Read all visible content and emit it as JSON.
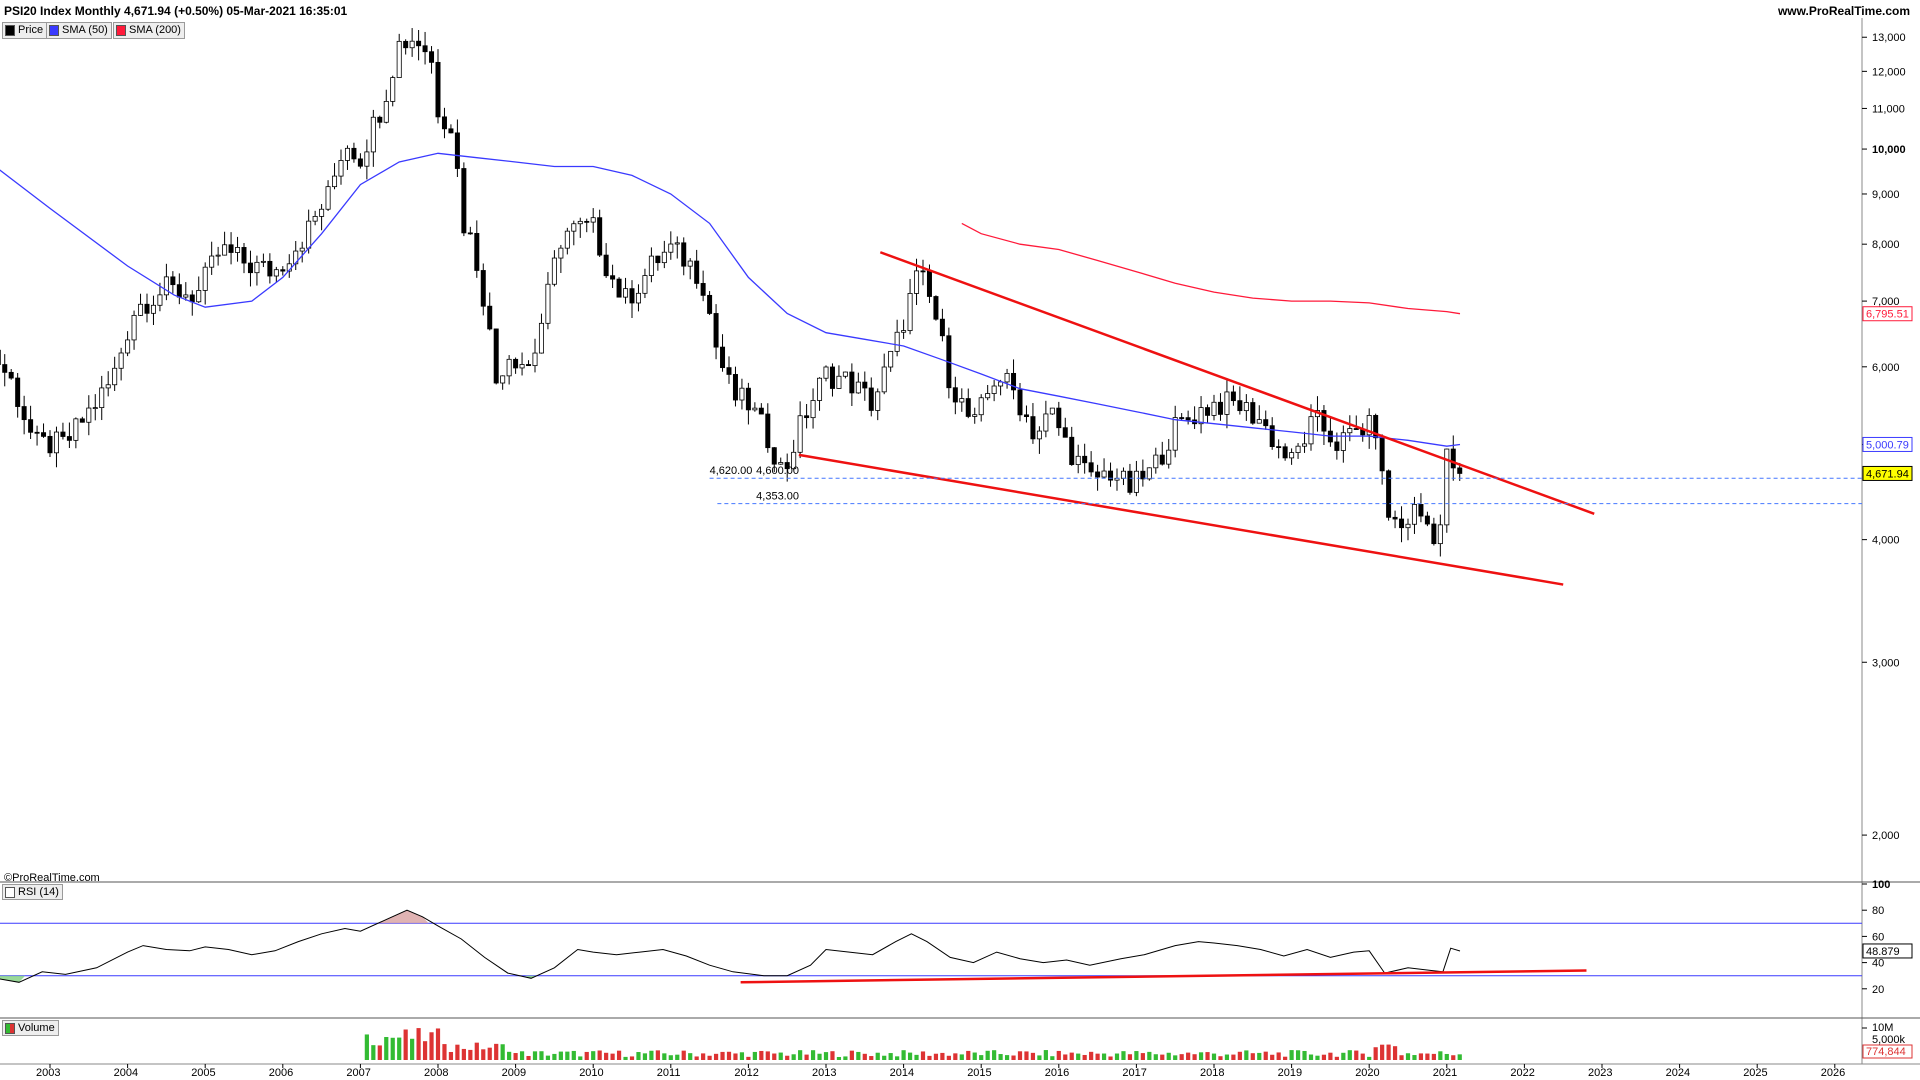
{
  "header": {
    "title": "PSI20 Index Monthly 4,671.94 (+0.50%) 05-Mar-2021 16:35:01",
    "site": "www.ProRealTime.com"
  },
  "legend": [
    {
      "label": "Price",
      "color": "#000000"
    },
    {
      "label": "SMA (50)",
      "color": "#3a3aff"
    },
    {
      "label": "SMA (200)",
      "color": "#ff1a3a"
    }
  ],
  "credit": "©ProRealTime.com",
  "colors": {
    "up": "#ffffff",
    "down": "#000000",
    "sma50": "#3a3aff",
    "sma200": "#ff1a3a",
    "trend": "#ee1111",
    "guide": "#4477ff",
    "volUp": "#33bb33",
    "volDown": "#dd3333",
    "rsiOver": "#d8a0a0",
    "rsiUnder": "#7fcf7f"
  },
  "chart_data": [
    {
      "type": "candlestick",
      "title": "PSI20 Index Monthly",
      "x_ticks": [
        "2003",
        "2004",
        "2005",
        "2006",
        "2007",
        "2008",
        "2009",
        "2010",
        "2011",
        "2012",
        "2013",
        "2014",
        "2015",
        "2016",
        "2017",
        "2018",
        "2019",
        "2020",
        "2021",
        "2022",
        "2023",
        "2024",
        "2025",
        "2026"
      ],
      "y_ticks": [
        "13,000",
        "12,000",
        "11,000",
        "10,000",
        "9,000",
        "8,000",
        "7,000",
        "6,000",
        "5,000",
        "4,000",
        "3,000",
        "2,000"
      ],
      "y_scale": "log",
      "ylim": [
        1800,
        13600
      ],
      "price_anchors": [
        [
          2002.0,
          7300
        ],
        [
          2002.2,
          6300
        ],
        [
          2002.5,
          5800
        ],
        [
          2002.8,
          5000
        ],
        [
          2003.2,
          5000
        ],
        [
          2003.5,
          5400
        ],
        [
          2003.8,
          5800
        ],
        [
          2004.1,
          6900
        ],
        [
          2004.5,
          7200
        ],
        [
          2004.9,
          7100
        ],
        [
          2005.2,
          7900
        ],
        [
          2005.6,
          7600
        ],
        [
          2005.9,
          7500
        ],
        [
          2006.3,
          8200
        ],
        [
          2006.6,
          9000
        ],
        [
          2006.8,
          10200
        ],
        [
          2007.0,
          9800
        ],
        [
          2007.3,
          11200
        ],
        [
          2007.5,
          12800
        ],
        [
          2007.7,
          13000
        ],
        [
          2007.9,
          12500
        ],
        [
          2008.0,
          11000
        ],
        [
          2008.2,
          10500
        ],
        [
          2008.3,
          8500
        ],
        [
          2008.45,
          8000
        ],
        [
          2008.6,
          7000
        ],
        [
          2008.75,
          5800
        ],
        [
          2008.9,
          6200
        ],
        [
          2009.2,
          6000
        ],
        [
          2009.4,
          7000
        ],
        [
          2009.6,
          8200
        ],
        [
          2009.8,
          8300
        ],
        [
          2010.0,
          8300
        ],
        [
          2010.2,
          7500
        ],
        [
          2010.4,
          7000
        ],
        [
          2010.6,
          7300
        ],
        [
          2010.8,
          7700
        ],
        [
          2011.0,
          7900
        ],
        [
          2011.2,
          7700
        ],
        [
          2011.4,
          7400
        ],
        [
          2011.6,
          6200
        ],
        [
          2011.8,
          5600
        ],
        [
          2012.0,
          5500
        ],
        [
          2012.3,
          5000
        ],
        [
          2012.45,
          4650
        ],
        [
          2012.7,
          5300
        ],
        [
          2013.0,
          5900
        ],
        [
          2013.3,
          5800
        ],
        [
          2013.6,
          5500
        ],
        [
          2013.9,
          6300
        ],
        [
          2014.2,
          7500
        ],
        [
          2014.4,
          6800
        ],
        [
          2014.6,
          5800
        ],
        [
          2014.9,
          5200
        ],
        [
          2015.2,
          5900
        ],
        [
          2015.4,
          5700
        ],
        [
          2015.7,
          5100
        ],
        [
          2015.9,
          5400
        ],
        [
          2016.1,
          5000
        ],
        [
          2016.4,
          4600
        ],
        [
          2016.7,
          4700
        ],
        [
          2016.9,
          4500
        ],
        [
          2017.2,
          4700
        ],
        [
          2017.5,
          5200
        ],
        [
          2017.8,
          5400
        ],
        [
          2018.0,
          5500
        ],
        [
          2018.3,
          5500
        ],
        [
          2018.6,
          5300
        ],
        [
          2018.8,
          5000
        ],
        [
          2019.0,
          4800
        ],
        [
          2019.3,
          5300
        ],
        [
          2019.6,
          5000
        ],
        [
          2019.9,
          5200
        ],
        [
          2020.1,
          5200
        ],
        [
          2020.2,
          4300
        ],
        [
          2020.4,
          4100
        ],
        [
          2020.6,
          4300
        ],
        [
          2020.9,
          4000
        ],
        [
          2021.0,
          4850
        ],
        [
          2021.17,
          4672
        ]
      ],
      "sma50": [
        [
          2002.0,
          10000
        ],
        [
          2003.0,
          8700
        ],
        [
          2004.0,
          7600
        ],
        [
          2004.6,
          7100
        ],
        [
          2005.0,
          6900
        ],
        [
          2005.6,
          7000
        ],
        [
          2006.0,
          7400
        ],
        [
          2006.5,
          8200
        ],
        [
          2007.0,
          9200
        ],
        [
          2007.5,
          9700
        ],
        [
          2008.0,
          9900
        ],
        [
          2008.5,
          9800
        ],
        [
          2009.0,
          9700
        ],
        [
          2009.5,
          9600
        ],
        [
          2010.0,
          9600
        ],
        [
          2010.5,
          9400
        ],
        [
          2011.0,
          9000
        ],
        [
          2011.5,
          8400
        ],
        [
          2012.0,
          7400
        ],
        [
          2012.5,
          6800
        ],
        [
          2013.0,
          6500
        ],
        [
          2013.5,
          6400
        ],
        [
          2014.0,
          6300
        ],
        [
          2014.5,
          6100
        ],
        [
          2015.0,
          5900
        ],
        [
          2015.5,
          5700
        ],
        [
          2016.0,
          5600
        ],
        [
          2016.5,
          5500
        ],
        [
          2017.0,
          5400
        ],
        [
          2017.5,
          5300
        ],
        [
          2018.0,
          5250
        ],
        [
          2018.5,
          5200
        ],
        [
          2019.0,
          5150
        ],
        [
          2019.5,
          5100
        ],
        [
          2020.0,
          5100
        ],
        [
          2020.5,
          5050
        ],
        [
          2021.0,
          4980
        ],
        [
          2021.17,
          5000.79
        ]
      ],
      "sma200": [
        [
          2014.75,
          8400
        ],
        [
          2015.0,
          8200
        ],
        [
          2015.5,
          8000
        ],
        [
          2016.0,
          7900
        ],
        [
          2016.5,
          7700
        ],
        [
          2017.0,
          7500
        ],
        [
          2017.5,
          7300
        ],
        [
          2018.0,
          7150
        ],
        [
          2018.5,
          7050
        ],
        [
          2019.0,
          7000
        ],
        [
          2019.5,
          7000
        ],
        [
          2020.0,
          6970
        ],
        [
          2020.5,
          6880
        ],
        [
          2021.0,
          6830
        ],
        [
          2021.17,
          6795.51
        ]
      ],
      "trendlines": [
        {
          "from": [
            2013.7,
            7850
          ],
          "to": [
            2022.9,
            4250
          ]
        },
        {
          "from": [
            2012.65,
            4880
          ],
          "to": [
            2022.5,
            3600
          ]
        }
      ],
      "hlines": [
        {
          "value": 4620.0,
          "label": "4,620.00",
          "from": 2011.5
        },
        {
          "value": 4353.0,
          "label": "4,353.00",
          "from": 2011.6
        }
      ],
      "mid_labels": [
        "4,620.00",
        "4,600.00",
        "4,353.00"
      ],
      "value_tags": [
        {
          "value": 6795.51,
          "label": "6,795.51",
          "color": "#ff1a3a",
          "fill": "#ffffff"
        },
        {
          "value": 5000.79,
          "label": "5,000.79",
          "color": "#3a3aff",
          "fill": "#ffffff"
        },
        {
          "value": 4671.94,
          "label": "4,671.94",
          "color": "#000000",
          "fill": "#ffff00"
        }
      ]
    },
    {
      "type": "line",
      "title": "RSI (14)",
      "y_ticks": [
        "100",
        "80",
        "60",
        "40",
        "20"
      ],
      "ylim": [
        0,
        100
      ],
      "levels": [
        70,
        30
      ],
      "last_value": "48.879",
      "series": [
        [
          2002.0,
          32
        ],
        [
          2002.3,
          28
        ],
        [
          2002.6,
          25
        ],
        [
          2002.9,
          33
        ],
        [
          2003.2,
          31
        ],
        [
          2003.6,
          36
        ],
        [
          2004.0,
          48
        ],
        [
          2004.2,
          53
        ],
        [
          2004.5,
          50
        ],
        [
          2004.8,
          49
        ],
        [
          2005.0,
          52
        ],
        [
          2005.3,
          50
        ],
        [
          2005.6,
          46
        ],
        [
          2005.9,
          49
        ],
        [
          2006.2,
          56
        ],
        [
          2006.5,
          62
        ],
        [
          2006.8,
          66
        ],
        [
          2007.0,
          64
        ],
        [
          2007.3,
          72
        ],
        [
          2007.6,
          80
        ],
        [
          2007.8,
          75
        ],
        [
          2008.0,
          68
        ],
        [
          2008.3,
          58
        ],
        [
          2008.6,
          44
        ],
        [
          2008.9,
          32
        ],
        [
          2009.2,
          28
        ],
        [
          2009.5,
          36
        ],
        [
          2009.8,
          50
        ],
        [
          2010.0,
          48
        ],
        [
          2010.3,
          46
        ],
        [
          2010.6,
          48
        ],
        [
          2010.9,
          50
        ],
        [
          2011.2,
          45
        ],
        [
          2011.5,
          38
        ],
        [
          2011.8,
          33
        ],
        [
          2012.2,
          30
        ],
        [
          2012.5,
          30
        ],
        [
          2012.8,
          38
        ],
        [
          2013.0,
          50
        ],
        [
          2013.3,
          48
        ],
        [
          2013.6,
          46
        ],
        [
          2013.9,
          56
        ],
        [
          2014.1,
          62
        ],
        [
          2014.3,
          56
        ],
        [
          2014.6,
          44
        ],
        [
          2014.9,
          40
        ],
        [
          2015.2,
          48
        ],
        [
          2015.5,
          43
        ],
        [
          2015.8,
          40
        ],
        [
          2016.1,
          42
        ],
        [
          2016.4,
          38
        ],
        [
          2016.8,
          43
        ],
        [
          2017.1,
          46
        ],
        [
          2017.5,
          53
        ],
        [
          2017.8,
          56
        ],
        [
          2018.0,
          55
        ],
        [
          2018.3,
          53
        ],
        [
          2018.6,
          50
        ],
        [
          2018.9,
          45
        ],
        [
          2019.2,
          50
        ],
        [
          2019.5,
          44
        ],
        [
          2019.8,
          48
        ],
        [
          2020.0,
          49
        ],
        [
          2020.2,
          32
        ],
        [
          2020.5,
          36
        ],
        [
          2020.8,
          34
        ],
        [
          2020.95,
          33
        ],
        [
          2021.05,
          51
        ],
        [
          2021.17,
          48.879
        ]
      ],
      "trendline": {
        "from": [
          2011.9,
          25
        ],
        "to": [
          2022.8,
          34
        ]
      }
    },
    {
      "type": "bar",
      "title": "Volume",
      "y_ticks": [
        "10M",
        "5,000k"
      ],
      "last_value": "774,844"
    }
  ]
}
